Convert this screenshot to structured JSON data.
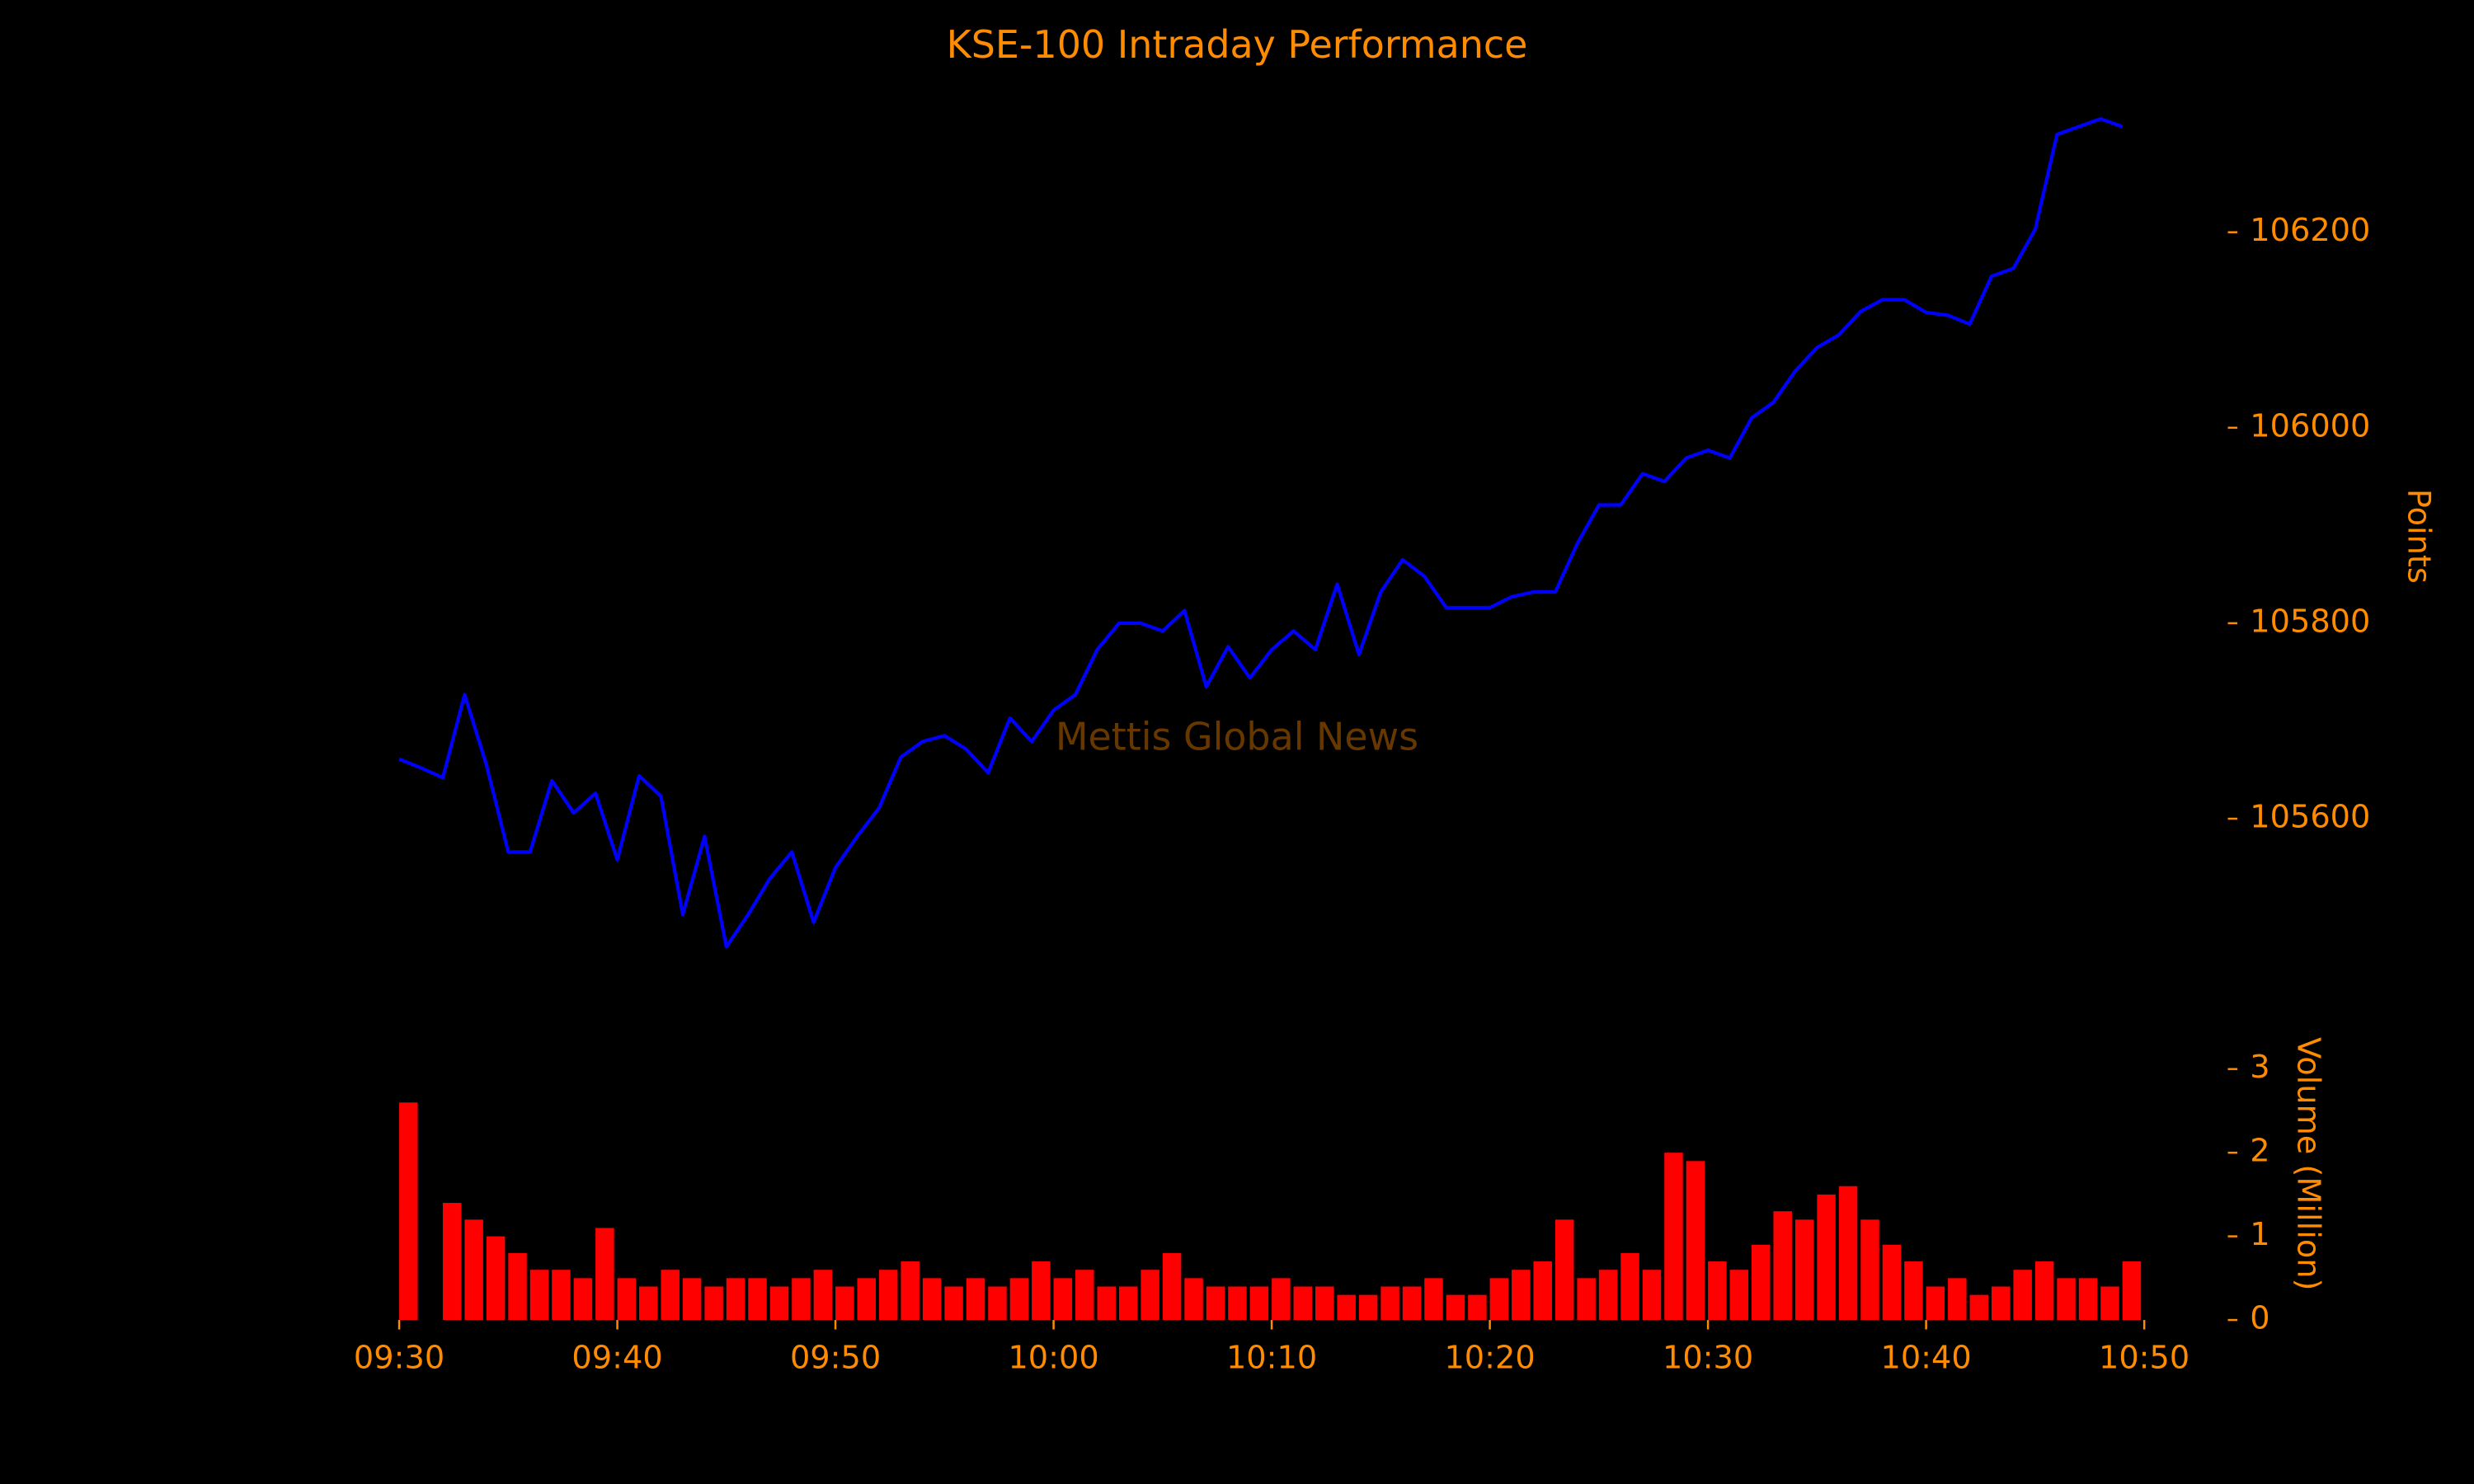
{
  "chart_data": [
    {
      "type": "line",
      "title": "KSE-100 Intraday Performance",
      "ylabel": "Points",
      "annotations": [
        "Mettis Global News"
      ],
      "color": "#0000ff",
      "x": [
        "09:30",
        "09:31",
        "09:32",
        "09:33",
        "09:34",
        "09:35",
        "09:36",
        "09:37",
        "09:38",
        "09:39",
        "09:40",
        "09:41",
        "09:42",
        "09:43",
        "09:44",
        "09:45",
        "09:46",
        "09:47",
        "09:48",
        "09:49",
        "09:50",
        "09:51",
        "09:52",
        "09:53",
        "09:54",
        "09:55",
        "09:56",
        "09:57",
        "09:58",
        "09:59",
        "10:00",
        "10:01",
        "10:02",
        "10:03",
        "10:04",
        "10:05",
        "10:06",
        "10:07",
        "10:08",
        "10:09",
        "10:10",
        "10:11",
        "10:12",
        "10:13",
        "10:14",
        "10:15",
        "10:16",
        "10:17",
        "10:18",
        "10:19",
        "10:20",
        "10:21",
        "10:22",
        "10:23",
        "10:24",
        "10:25",
        "10:26",
        "10:27",
        "10:28",
        "10:29",
        "10:30",
        "10:31",
        "10:32",
        "10:33",
        "10:34",
        "10:35",
        "10:36",
        "10:37",
        "10:38",
        "10:39",
        "10:40",
        "10:41",
        "10:42",
        "10:43",
        "10:44",
        "10:45",
        "10:46",
        "10:47",
        "10:48",
        "10:49"
      ],
      "values": [
        105661,
        105652,
        105642,
        105727,
        105655,
        105566,
        105566,
        105639,
        105606,
        105626,
        105558,
        105644,
        105623,
        105502,
        105582,
        105469,
        105502,
        105539,
        105566,
        105494,
        105550,
        105582,
        105611,
        105663,
        105679,
        105685,
        105671,
        105647,
        105703,
        105679,
        105711,
        105727,
        105773,
        105800,
        105800,
        105792,
        105813,
        105735,
        105776,
        105744,
        105773,
        105792,
        105773,
        105840,
        105768,
        105832,
        105865,
        105848,
        105816,
        105816,
        105816,
        105827,
        105832,
        105832,
        105881,
        105921,
        105921,
        105953,
        105945,
        105969,
        105977,
        105969,
        106010,
        106026,
        106058,
        106082,
        106095,
        106119,
        106131,
        106131,
        106118,
        106115,
        106106,
        106155,
        106163,
        106203,
        106300,
        106308,
        106316,
        106308
      ],
      "xlim": [
        "09:30",
        "10:50"
      ],
      "ylim": [
        105405,
        106365
      ],
      "yticks": [
        105600,
        105800,
        106000,
        106200
      ]
    },
    {
      "type": "bar",
      "ylabel": "Volume (Million)",
      "color": "#ff0000",
      "x": [
        "09:30",
        "09:31",
        "09:32",
        "09:33",
        "09:34",
        "09:35",
        "09:36",
        "09:37",
        "09:38",
        "09:39",
        "09:40",
        "09:41",
        "09:42",
        "09:43",
        "09:44",
        "09:45",
        "09:46",
        "09:47",
        "09:48",
        "09:49",
        "09:50",
        "09:51",
        "09:52",
        "09:53",
        "09:54",
        "09:55",
        "09:56",
        "09:57",
        "09:58",
        "09:59",
        "10:00",
        "10:01",
        "10:02",
        "10:03",
        "10:04",
        "10:05",
        "10:06",
        "10:07",
        "10:08",
        "10:09",
        "10:10",
        "10:11",
        "10:12",
        "10:13",
        "10:14",
        "10:15",
        "10:16",
        "10:17",
        "10:18",
        "10:19",
        "10:20",
        "10:21",
        "10:22",
        "10:23",
        "10:24",
        "10:25",
        "10:26",
        "10:27",
        "10:28",
        "10:29",
        "10:30",
        "10:31",
        "10:32",
        "10:33",
        "10:34",
        "10:35",
        "10:36",
        "10:37",
        "10:38",
        "10:39",
        "10:40",
        "10:41",
        "10:42",
        "10:43",
        "10:44",
        "10:45",
        "10:46",
        "10:47",
        "10:48",
        "10:49"
      ],
      "values": [
        2.6,
        0,
        1.4,
        1.2,
        1.0,
        0.8,
        0.6,
        0.6,
        0.5,
        1.1,
        0.5,
        0.4,
        0.6,
        0.5,
        0.4,
        0.5,
        0.5,
        0.4,
        0.5,
        0.6,
        0.4,
        0.5,
        0.6,
        0.7,
        0.5,
        0.4,
        0.5,
        0.4,
        0.5,
        0.7,
        0.5,
        0.6,
        0.4,
        0.4,
        0.6,
        0.8,
        0.5,
        0.4,
        0.4,
        0.4,
        0.5,
        0.4,
        0.4,
        0.3,
        0.3,
        0.4,
        0.4,
        0.5,
        0.3,
        0.3,
        0.5,
        0.6,
        0.7,
        1.2,
        0.5,
        0.6,
        0.8,
        0.6,
        2.0,
        1.9,
        0.7,
        0.6,
        0.9,
        1.3,
        1.2,
        1.5,
        1.6,
        1.2,
        0.9,
        0.7,
        0.4,
        0.5,
        0.3,
        0.4,
        0.6,
        0.7,
        0.5,
        0.5,
        0.4,
        0.7
      ],
      "xlim": [
        "09:30",
        "10:50"
      ],
      "xticks": [
        "09:30",
        "09:40",
        "09:50",
        "10:00",
        "10:10",
        "10:20",
        "10:30",
        "10:40",
        "10:50"
      ],
      "ylim": [
        0,
        3.62
      ],
      "yticks": [
        0,
        1,
        2,
        3
      ]
    }
  ]
}
